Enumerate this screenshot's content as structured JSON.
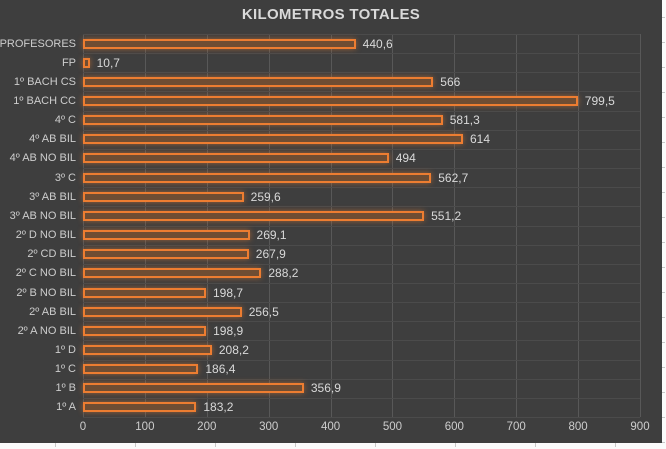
{
  "chart_data": {
    "type": "bar",
    "orientation": "horizontal",
    "title": "KILOMETROS TOTALES",
    "categories": [
      "PROFESORES",
      "FP",
      "1º BACH CS",
      "1º BACH CC",
      "4º C",
      "4º AB BIL",
      "4º AB NO BIL",
      "3º C",
      "3º AB BIL",
      "3º AB NO BIL",
      "2º D NO BIL",
      "2º CD BIL",
      "2º C NO BIL",
      "2º B NO BIL",
      "2º AB BIL",
      "2º A NO BIL",
      "1º D",
      "1º C",
      "1º B",
      "1º A"
    ],
    "values": [
      440.6,
      10.7,
      566,
      799.5,
      581.3,
      614,
      494,
      562.7,
      259.6,
      551.2,
      269.1,
      267.9,
      288.2,
      198.7,
      256.5,
      198.9,
      208.2,
      186.4,
      356.9,
      183.2
    ],
    "value_labels": [
      "440,6",
      "10,7",
      "566",
      "799,5",
      "581,3",
      "614",
      "494",
      "562,7",
      "259,6",
      "551,2",
      "269,1",
      "267,9",
      "288,2",
      "198,7",
      "256,5",
      "198,9",
      "208,2",
      "186,4",
      "356,9",
      "183,2"
    ],
    "xlabel": "",
    "ylabel": "",
    "xlim": [
      0,
      900
    ],
    "x_ticks": [
      "0",
      "100",
      "200",
      "300",
      "400",
      "500",
      "600",
      "700",
      "800",
      "900"
    ],
    "grid": true,
    "legend_position": "none",
    "colors": {
      "chart_background": "#3E3E3E",
      "bar_fill": "#6F4D33",
      "bar_border": "#ED7D31",
      "gridline_vertical": "#585858",
      "gridline_horizontal": "#4B4B4B",
      "axis_text": "#CDCDCD",
      "title_text": "#D9D9D9",
      "data_label_text": "#D9D9D9"
    }
  }
}
